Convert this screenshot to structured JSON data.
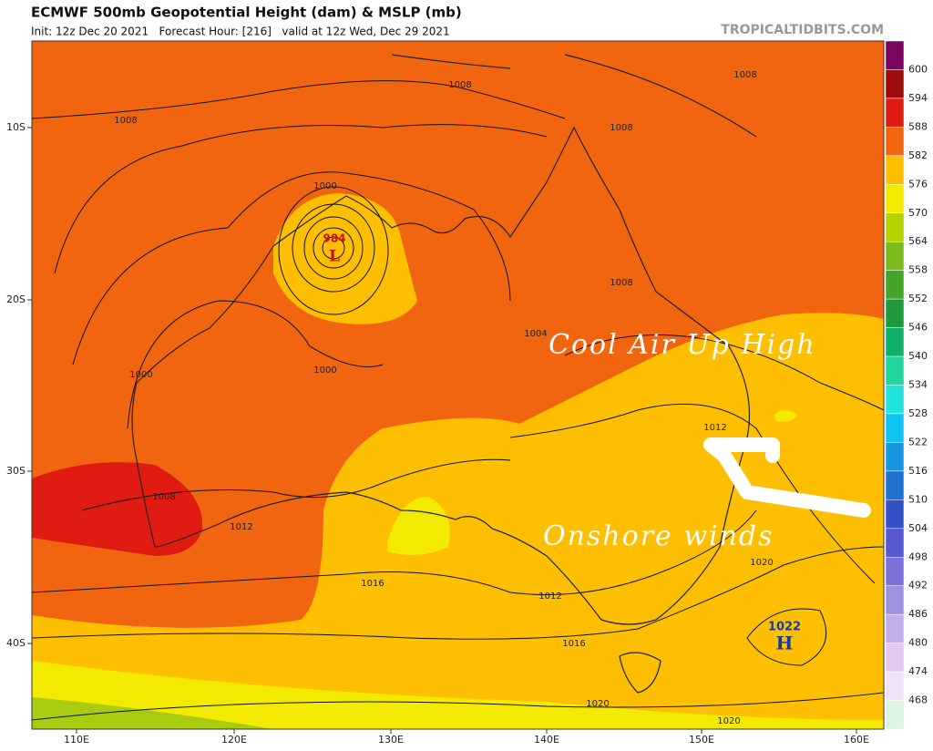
{
  "header": {
    "title": "ECMWF 500mb Geopotential Height (dam) & MSLP (mb)",
    "subtitle": "Init: 12z Dec 20 2021   Forecast Hour: [216]   valid at 12z Wed, Dec 29 2021",
    "site": "TROPICALTIDBITS.COM"
  },
  "colorbar": {
    "labels": [
      "600",
      "594",
      "588",
      "582",
      "576",
      "570",
      "564",
      "558",
      "552",
      "546",
      "540",
      "534",
      "528",
      "522",
      "516",
      "510",
      "504",
      "498",
      "492",
      "486",
      "480",
      "474",
      "468"
    ],
    "colors": [
      "#7a0660",
      "#9e0c0c",
      "#e01b12",
      "#f26510",
      "#fdbf00",
      "#f3ea00",
      "#b5d300",
      "#7cbb1c",
      "#44a52a",
      "#1e9a3c",
      "#10b068",
      "#22d49e",
      "#22e2dc",
      "#10c4f2",
      "#1696e2",
      "#2072d2",
      "#3452c8",
      "#5858d4",
      "#7c70da",
      "#a090e2",
      "#c2aee8",
      "#e0caf2",
      "#f2e2f8",
      "#dcf4e0"
    ]
  },
  "axes": {
    "lat_labels": [
      "10S",
      "20S",
      "30S",
      "40S"
    ],
    "lon_labels": [
      "110E",
      "120E",
      "130E",
      "140E",
      "150E",
      "160E"
    ]
  },
  "map": {
    "contour_labels": [
      "1008",
      "1008",
      "1008",
      "1008",
      "1000",
      "1000",
      "1000",
      "1004",
      "1008",
      "1012",
      "1008",
      "1012",
      "1016",
      "1012",
      "1016",
      "1020",
      "1020",
      "1020"
    ],
    "low": {
      "pressure": "984",
      "symbol": "L"
    },
    "high": {
      "pressure": "1022",
      "symbol": "H"
    }
  },
  "annotations": [
    "Cool Air Up High",
    "Onshore winds"
  ]
}
